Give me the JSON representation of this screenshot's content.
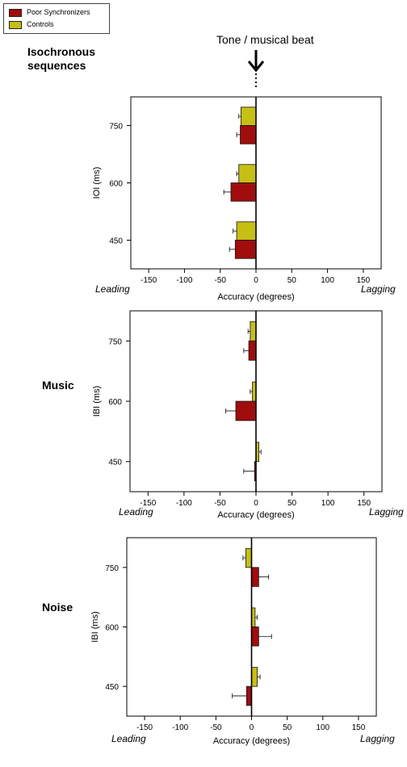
{
  "legend": {
    "items": [
      {
        "label": "Poor Synchronizers",
        "color": "#a00d0d"
      },
      {
        "label": "Controls",
        "color": "#c6bf14"
      }
    ]
  },
  "annotation": {
    "top_note": "Tone / musical beat"
  },
  "panels": [
    {
      "section_label": "Isochronous sequences",
      "leading": "Leading",
      "lagging": "Lagging"
    },
    {
      "section_label": "Music",
      "leading": "Leading",
      "lagging": "Lagging"
    },
    {
      "section_label": "Noise",
      "leading": "Leading",
      "lagging": "Lagging"
    }
  ],
  "chart_data": [
    {
      "type": "bar",
      "orientation": "horizontal",
      "categories": [
        "450",
        "600",
        "750"
      ],
      "series": [
        {
          "name": "Poor Synchronizers",
          "color": "#a00d0d",
          "values": [
            -29,
            -35,
            -22
          ],
          "errors": [
            8,
            10,
            5
          ]
        },
        {
          "name": "Controls",
          "color": "#c6bf14",
          "values": [
            -27,
            -24,
            -21
          ],
          "errors": [
            5,
            3,
            3
          ]
        }
      ],
      "xlabel": "Accuracy (degrees)",
      "ylabel": "IOI (ms)",
      "xlim": [
        -175,
        175
      ],
      "xticks": [
        -150,
        -100,
        -50,
        0,
        50,
        100,
        150
      ]
    },
    {
      "type": "bar",
      "orientation": "horizontal",
      "categories": [
        "450",
        "600",
        "750"
      ],
      "series": [
        {
          "name": "Poor Synchronizers",
          "color": "#a00d0d",
          "values": [
            -2,
            -28,
            -10
          ],
          "errors": [
            15,
            14,
            7
          ]
        },
        {
          "name": "Controls",
          "color": "#c6bf14",
          "values": [
            4,
            -5,
            -8
          ],
          "errors": [
            3,
            3,
            3
          ]
        }
      ],
      "xlabel": "Accuracy (degrees)",
      "ylabel": "IBI (ms)",
      "xlim": [
        -175,
        175
      ],
      "xticks": [
        -150,
        -100,
        -50,
        0,
        50,
        100,
        150
      ]
    },
    {
      "type": "bar",
      "orientation": "horizontal",
      "categories": [
        "450",
        "600",
        "750"
      ],
      "series": [
        {
          "name": "Poor Synchronizers",
          "color": "#a00d0d",
          "values": [
            -7,
            10,
            10
          ],
          "errors": [
            20,
            18,
            14
          ]
        },
        {
          "name": "Controls",
          "color": "#c6bf14",
          "values": [
            8,
            5,
            -8
          ],
          "errors": [
            4,
            3,
            4
          ]
        }
      ],
      "xlabel": "Accuracy (degrees)",
      "ylabel": "IBI (ms)",
      "xlim": [
        -175,
        175
      ],
      "xticks": [
        -150,
        -100,
        -50,
        0,
        50,
        100,
        150
      ]
    }
  ]
}
